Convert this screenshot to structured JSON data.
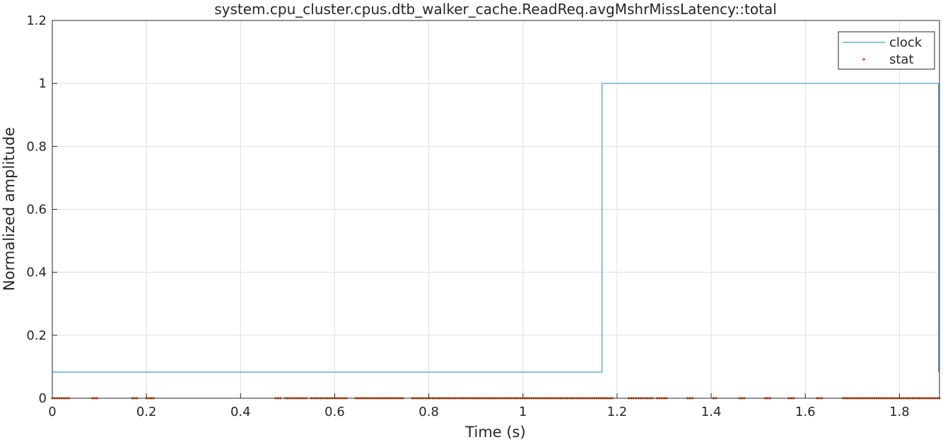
{
  "chart_data": {
    "type": "line",
    "title": "system.cpu_cluster.cpus.dtb_walker_cache.ReadReq.avgMshrMissLatency::total",
    "xlabel": "Time (s)",
    "ylabel": "Normalized amplitude",
    "xlim": [
      0,
      1.885
    ],
    "ylim": [
      0,
      1.2
    ],
    "xticks": [
      0,
      0.2,
      0.4,
      0.6,
      0.8,
      1,
      1.2,
      1.4,
      1.6,
      1.8
    ],
    "xtick_labels": [
      "0",
      "0.2",
      "0.4",
      "0.6",
      "0.8",
      "1",
      "1.2",
      "1.4",
      "1.6",
      "1.8"
    ],
    "yticks": [
      0,
      0.2,
      0.4,
      0.6,
      0.8,
      1,
      1.2
    ],
    "ytick_labels": [
      "0",
      "0.2",
      "0.4",
      "0.6",
      "0.8",
      "1",
      "1.2"
    ],
    "grid": true,
    "legend_position": "top-right",
    "series": [
      {
        "name": "clock",
        "color": "#4a9bc7",
        "style": "step-line",
        "x": [
          0,
          1.168,
          1.168,
          1.883,
          1.883
        ],
        "y": [
          0.083,
          0.083,
          1.0,
          1.0,
          0.083
        ]
      },
      {
        "name": "stat",
        "color": "#d95319",
        "style": "markers",
        "y_value": 0,
        "x_ranges": [
          [
            0,
            0.035
          ],
          [
            0.085,
            0.095
          ],
          [
            0.17,
            0.18
          ],
          [
            0.2,
            0.215
          ],
          [
            0.475,
            0.485
          ],
          [
            0.495,
            0.54
          ],
          [
            0.55,
            0.565
          ],
          [
            0.57,
            0.625
          ],
          [
            0.645,
            0.745
          ],
          [
            0.765,
            0.87
          ],
          [
            0.87,
            1.19
          ],
          [
            1.225,
            1.275
          ],
          [
            1.285,
            1.305
          ],
          [
            1.35,
            1.36
          ],
          [
            1.405,
            1.41
          ],
          [
            1.46,
            1.47
          ],
          [
            1.515,
            1.525
          ],
          [
            1.565,
            1.575
          ],
          [
            1.625,
            1.635
          ],
          [
            1.68,
            1.885
          ]
        ]
      }
    ]
  }
}
